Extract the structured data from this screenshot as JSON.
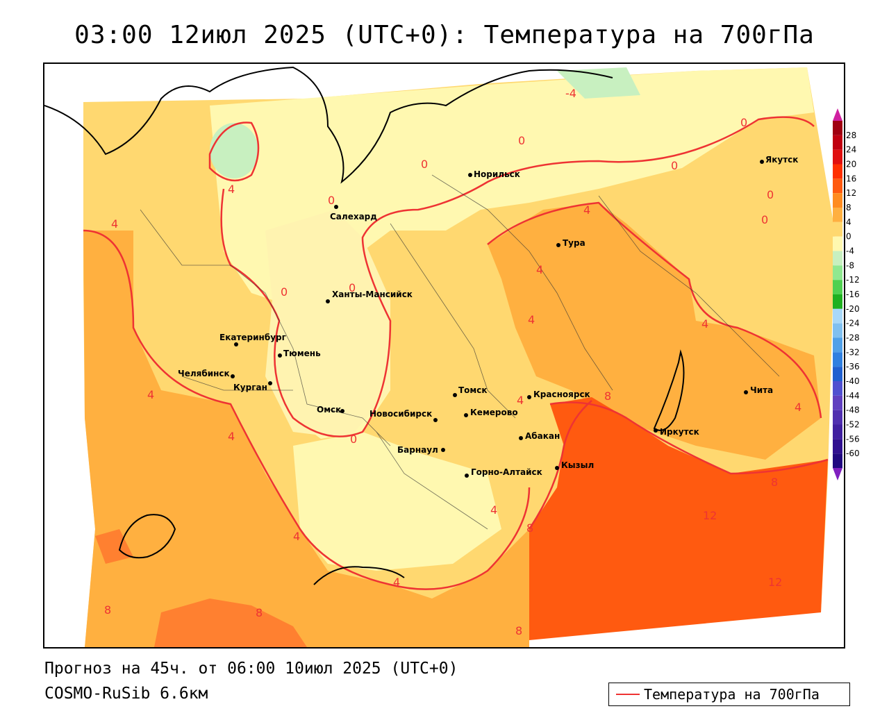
{
  "title": "03:00 12июл 2025 (UTC+0): Температура на 700гПа",
  "footer": {
    "forecast": "Прогноз на 45ч. от 06:00 10июл 2025 (UTC+0)",
    "model": "COSMO-RuSib 6.6км"
  },
  "legend": {
    "label": "Температура на 700гПа",
    "line_color": "#ee3333"
  },
  "colorbar": {
    "ticks": [
      "28",
      "24",
      "20",
      "16",
      "12",
      "8",
      "4",
      "0",
      "-4",
      "-8",
      "-12",
      "-16",
      "-20",
      "-24",
      "-28",
      "-32",
      "-36",
      "-40",
      "-44",
      "-48",
      "-52",
      "-56",
      "-60"
    ],
    "colors": [
      "#a00010",
      "#c00010",
      "#e01010",
      "#ff3000",
      "#ff5a10",
      "#ff8c20",
      "#ffb040",
      "#ffd870",
      "#fff8b0",
      "#c8f0c0",
      "#90e890",
      "#50d050",
      "#20b020",
      "#a8d8f8",
      "#80c0f0",
      "#50a0e8",
      "#3080e0",
      "#2060d0",
      "#5050d0",
      "#6040c0",
      "#5030b0",
      "#4020a0",
      "#301090",
      "#200880"
    ]
  },
  "cities": [
    {
      "name": "Норильск"
    },
    {
      "name": "Якутск"
    },
    {
      "name": "Салехард"
    },
    {
      "name": "Тура"
    },
    {
      "name": "Ханты-Мансийск"
    },
    {
      "name": "Екатеринбург"
    },
    {
      "name": "Тюмень"
    },
    {
      "name": "Челябинск"
    },
    {
      "name": "Курган"
    },
    {
      "name": "Омск"
    },
    {
      "name": "Томск"
    },
    {
      "name": "Красноярск"
    },
    {
      "name": "Новосибирск"
    },
    {
      "name": "Кемерово"
    },
    {
      "name": "Абакан"
    },
    {
      "name": "Барнаул"
    },
    {
      "name": "Горно-Алтайск"
    },
    {
      "name": "Кызыл"
    },
    {
      "name": "Иркутск"
    },
    {
      "name": "Чита"
    }
  ],
  "isotherm_labels": [
    "-4",
    "0",
    "4",
    "8",
    "12"
  ],
  "field_colors": {
    "minus4": "#c8f0c0",
    "zero": "#fff8b0",
    "four": "#ffd870",
    "eight": "#ffb040",
    "twelve": "#ff5a10",
    "contour": "#ee3333"
  }
}
